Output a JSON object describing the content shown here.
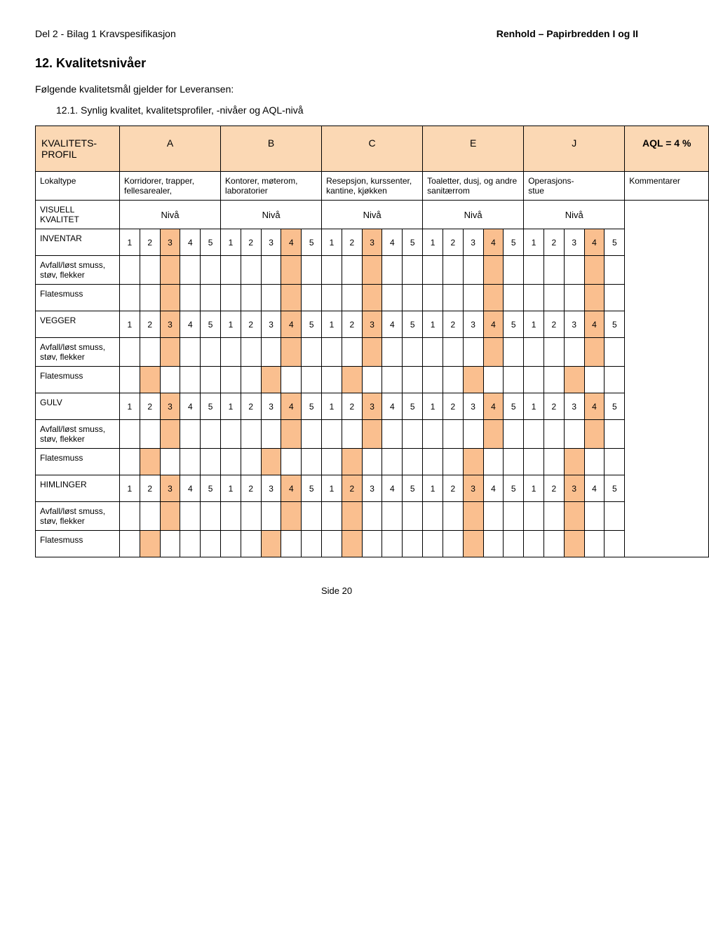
{
  "header": {
    "left": "Del 2 - Bilag 1 Kravspesifikasjon",
    "right": "Renhold – Papirbredden I og II"
  },
  "section": {
    "number": "12.",
    "title": "Kvalitetsnivåer",
    "intro": "Følgende kvalitetsmål gjelder for Leveransen:",
    "sub_number": "12.1.",
    "sub_title": "Synlig kvalitet, kvalitetsprofiler, -nivåer og AQL-nivå"
  },
  "table": {
    "profile_label": "KVALITETS-PROFIL",
    "cols": [
      "A",
      "B",
      "C",
      "E",
      "J"
    ],
    "aql_label": "AQL = 4 %",
    "lokaltype_label": "Lokaltype",
    "lokaltypes": [
      "Korridorer, trapper, fellesarealer,",
      "Kontorer, møterom, laboratorier",
      "Resepsjon, kurssenter, kantine, kjøkken",
      "Toaletter, dusj, og andre sanitærrom",
      "Operasjons-stue"
    ],
    "kommentarer_label": "Kommentarer",
    "visuell_label": "VISUELL KVALITET",
    "nivaa": "Nivå",
    "numbers": [
      "1",
      "2",
      "3",
      "4",
      "5"
    ],
    "sections": [
      {
        "header": "INVENTAR",
        "shaded": [
          2,
          3,
          2,
          3,
          3
        ],
        "rows": [
          {
            "label": "Avfall/løst smuss, støv, flekker",
            "shaded": [
              2,
              3,
              2,
              3,
              3
            ]
          },
          {
            "label": "Flatesmuss",
            "shaded": [
              2,
              3,
              2,
              3,
              3
            ]
          }
        ]
      },
      {
        "header": "VEGGER",
        "shaded": [
          2,
          3,
          2,
          3,
          3
        ],
        "rows": [
          {
            "label": "Avfall/løst smuss, støv, flekker",
            "shaded": [
              2,
              3,
              2,
              3,
              3
            ]
          },
          {
            "label": "Flatesmuss",
            "shaded": [
              1,
              2,
              1,
              2,
              2
            ]
          }
        ]
      },
      {
        "header": "GULV",
        "shaded": [
          2,
          3,
          2,
          3,
          3
        ],
        "rows": [
          {
            "label": "Avfall/løst smuss, støv, flekker",
            "shaded": [
              2,
              3,
              2,
              3,
              3
            ]
          },
          {
            "label": "Flatesmuss",
            "shaded": [
              1,
              2,
              1,
              2,
              2
            ]
          }
        ]
      },
      {
        "header": "HIMLINGER",
        "shaded": [
          2,
          3,
          1,
          2,
          2
        ],
        "rows": [
          {
            "label": "Avfall/løst smuss, støv, flekker",
            "shaded": [
              2,
              3,
              1,
              2,
              2
            ]
          },
          {
            "label": "Flatesmuss",
            "shaded": [
              1,
              2,
              1,
              2,
              2
            ]
          }
        ]
      }
    ]
  },
  "footer": "Side 20",
  "colors": {
    "header_bg": "#fbd8b4",
    "shaded_bg": "#fabf8f"
  }
}
